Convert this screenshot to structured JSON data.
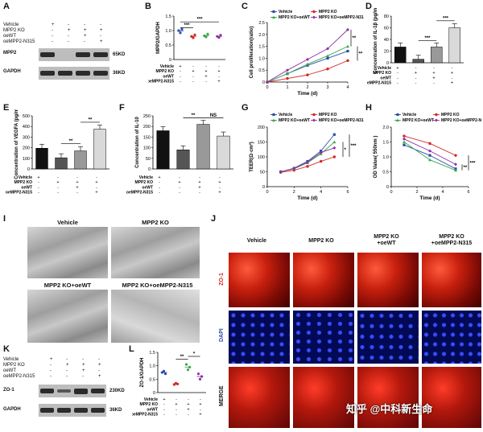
{
  "panels": {
    "A": "A",
    "B": "B",
    "C": "C",
    "D": "D",
    "E": "E",
    "F": "F",
    "G": "G",
    "H": "H",
    "I": "I",
    "J": "J",
    "K": "K",
    "L": "L"
  },
  "groups": {
    "vehicle": "Vehicle",
    "ko": "MPP2 KO",
    "oewt": "oeWT",
    "oemut": "oeMPP2-N315"
  },
  "blotA": {
    "rows": [
      "Vehicle",
      "MPP2 KO",
      "oeWT",
      "oeMPP2-N315"
    ],
    "signs": [
      [
        "+",
        "-",
        "-",
        "-"
      ],
      [
        "-",
        "+",
        "+",
        "+"
      ],
      [
        "-",
        "-",
        "+",
        "-"
      ],
      [
        "-",
        "-",
        "-",
        "+"
      ]
    ],
    "band1": "MPP2",
    "size1": "65KD",
    "band2": "GAPDH",
    "size2": "36KD"
  },
  "blotK": {
    "rows": [
      "Vehicle",
      "MPP2 KO",
      "oeWT",
      "oeMPP2-N315"
    ],
    "signs": [
      [
        "+",
        "-",
        "-",
        "-"
      ],
      [
        "-",
        "+",
        "+",
        "+"
      ],
      [
        "-",
        "-",
        "+",
        "-"
      ],
      [
        "-",
        "-",
        "-",
        "+"
      ]
    ],
    "band1": "ZO-1",
    "size1": "230KD",
    "band2": "GAPDH",
    "size2": "36KD"
  },
  "sig": {
    "three": "***",
    "two": "**",
    "one": "*",
    "ns": "NS"
  },
  "chart_data": [
    {
      "panel": "B",
      "type": "scatter",
      "ylabel": "MPP2/GAPDH",
      "ylim": [
        0,
        1.5
      ],
      "yticks": [
        "0",
        "0.5",
        "1.0",
        "1.5"
      ],
      "series": [
        {
          "name": "Vehicle",
          "values": [
            1.0,
            0.92,
            1.05
          ]
        },
        {
          "name": "MPP2 KO",
          "values": [
            0.8,
            0.75,
            0.85
          ]
        },
        {
          "name": "MPP2 KO+oeWT",
          "values": [
            0.82,
            0.78,
            0.88
          ]
        },
        {
          "name": "MPP2 KO+oeMPP2-N315",
          "values": [
            0.8,
            0.76,
            0.84
          ]
        }
      ]
    },
    {
      "panel": "C",
      "type": "line",
      "xlabel": "Time (d)",
      "ylabel": "Cell proliferation(ratio)",
      "x": [
        0,
        1,
        2,
        3,
        4
      ],
      "xlim": [
        0,
        4
      ],
      "ylim": [
        0,
        2.5
      ],
      "yticks": [
        "0",
        "0.5",
        "1.0",
        "1.5",
        "2.0",
        "2.5"
      ],
      "series": [
        {
          "name": "Vehicle",
          "values": [
            0.0,
            0.35,
            0.7,
            1.0,
            1.3
          ]
        },
        {
          "name": "MPP2 KO",
          "values": [
            0.0,
            0.15,
            0.3,
            0.55,
            0.9
          ]
        },
        {
          "name": "MPP2 KO+oeWT",
          "values": [
            0.0,
            0.35,
            0.75,
            1.1,
            1.5
          ]
        },
        {
          "name": "MPP2 KO+oeMPP2-N315",
          "values": [
            0.0,
            0.5,
            0.95,
            1.4,
            2.2
          ]
        }
      ]
    },
    {
      "panel": "D",
      "type": "bar",
      "ylabel": "Concentration of IL-1β (pg/ml)",
      "categories": [
        "Vehicle",
        "MPP2 KO",
        "oeWT",
        "oeMPP2-N315"
      ],
      "values": [
        27,
        6,
        27,
        60
      ],
      "ylim": [
        0,
        80
      ],
      "yticks": [
        "0",
        "20",
        "40",
        "60",
        "80"
      ]
    },
    {
      "panel": "E",
      "type": "bar",
      "ylabel": "Concentration of VEGFA (pg/ml)",
      "categories": [
        "Vehicle",
        "MPP2 KO",
        "oeWT",
        "oeMPP2-N315"
      ],
      "values": [
        195,
        105,
        170,
        375
      ],
      "ylim": [
        0,
        500
      ],
      "yticks": [
        "0",
        "100",
        "200",
        "300",
        "400",
        "500"
      ]
    },
    {
      "panel": "F",
      "type": "bar",
      "ylabel": "Concentration of IL-10",
      "categories": [
        "Vehicle",
        "MPP2 KO",
        "oeWT",
        "oeMPP2-N315"
      ],
      "values": [
        180,
        90,
        210,
        155
      ],
      "ylim": [
        0,
        250
      ],
      "yticks": [
        "0",
        "50",
        "100",
        "150",
        "200",
        "250"
      ]
    },
    {
      "panel": "G",
      "type": "line",
      "xlabel": "Time (d)",
      "ylabel": "TEER(Ω·cm²)",
      "x": [
        1,
        2,
        3,
        4,
        5
      ],
      "xlim": [
        0,
        6
      ],
      "ylim": [
        0,
        200
      ],
      "yticks": [
        "0",
        "50",
        "100",
        "150",
        "200"
      ],
      "series": [
        {
          "name": "Vehicle",
          "values": [
            50,
            62,
            85,
            120,
            175
          ]
        },
        {
          "name": "MPP2 KO",
          "values": [
            48,
            55,
            68,
            85,
            100
          ]
        },
        {
          "name": "MPP2 KO+oeWT",
          "values": [
            50,
            60,
            80,
            110,
            150
          ]
        },
        {
          "name": "MPP2 KO+oeMPP2-N315",
          "values": [
            50,
            61,
            82,
            115,
            130
          ]
        }
      ]
    },
    {
      "panel": "H",
      "type": "line",
      "xlabel": "Time (d)",
      "ylabel": "OD Value( 550nm )",
      "x": [
        1,
        3,
        5
      ],
      "xlim": [
        0,
        6
      ],
      "ylim": [
        0,
        2.0
      ],
      "yticks": [
        "0",
        "0.5",
        "1.0",
        "1.5",
        "2.0"
      ],
      "series": [
        {
          "name": "Vehicle",
          "values": [
            1.4,
            1.05,
            0.6
          ]
        },
        {
          "name": "MPP2 KO",
          "values": [
            1.7,
            1.45,
            1.05
          ]
        },
        {
          "name": "MPP2 KO+oeWT",
          "values": [
            1.5,
            0.9,
            0.55
          ]
        },
        {
          "name": "MPP2 KO+oeMPP2-N315",
          "values": [
            1.6,
            1.2,
            0.75
          ]
        }
      ]
    },
    {
      "panel": "L",
      "type": "scatter",
      "ylabel": "ZO-1/GAPDH",
      "ylim": [
        0,
        1.5
      ],
      "yticks": [
        "0",
        "0.5",
        "1.0",
        "1.5"
      ],
      "series": [
        {
          "name": "Vehicle",
          "values": [
            0.75,
            0.8,
            0.7
          ]
        },
        {
          "name": "MPP2 KO",
          "values": [
            0.3,
            0.35,
            0.32
          ]
        },
        {
          "name": "MPP2 KO+oeWT",
          "values": [
            1.05,
            0.85,
            0.95
          ]
        },
        {
          "name": "MPP2 KO+oeMPP2-N315",
          "values": [
            0.7,
            0.5,
            0.6
          ]
        }
      ]
    }
  ],
  "emI": {
    "vehicle": "Vehicle",
    "ko": "MPP2 KO",
    "oewt": "MPP2 KO+oeWT",
    "oemut": "MPP2 KO+oeMPP2-N315"
  },
  "panelJ": {
    "cols": [
      "Vehicle",
      "MPP2 KO",
      "MPP2 KO\n+oeWT",
      "MPP2 KO\n+oeMPP2-N315"
    ],
    "rows": [
      "ZO-1",
      "DAPI",
      "MERGE"
    ]
  },
  "watermark": "知乎 @中科新生命",
  "colors": {
    "vehicle": "#2b4fa8",
    "ko": "#d62728",
    "oewt": "#3aa64a",
    "oemut": "#8e2fa6",
    "bar1": "#111111",
    "bar2": "#555555",
    "bar3": "#999999",
    "bar4": "#d9d9d9"
  }
}
